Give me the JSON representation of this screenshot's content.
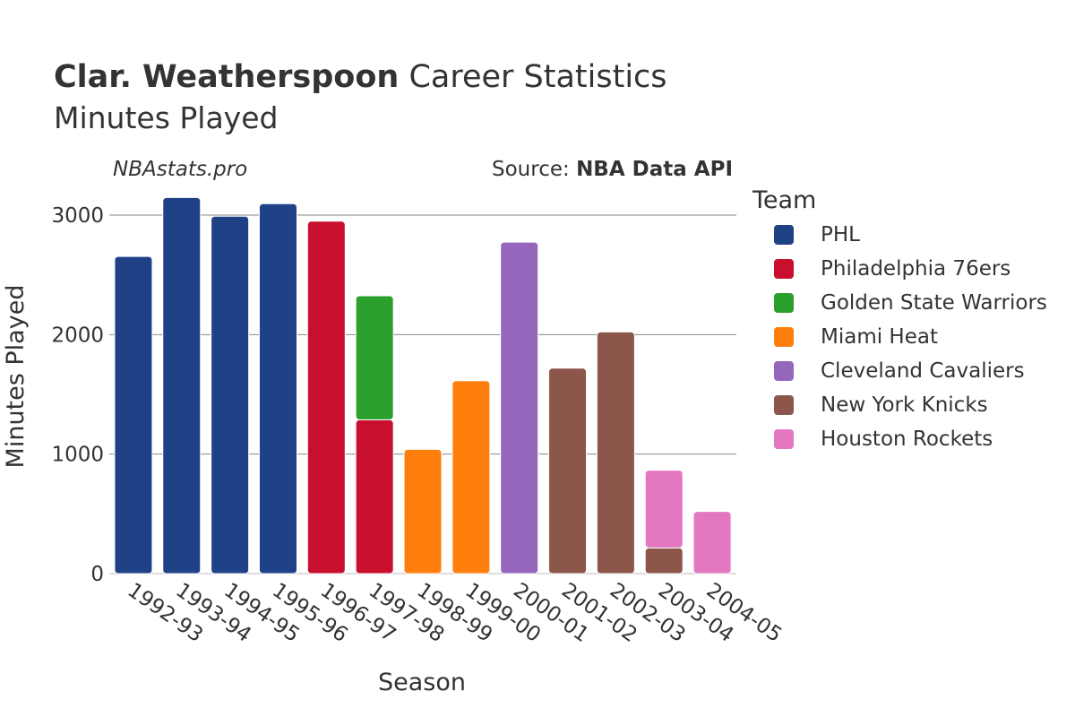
{
  "header": {
    "title_bold": "Clar. Weatherspoon",
    "title_rest": " Career Statistics",
    "subtitle": "Minutes Played",
    "watermark": "NBAstats.pro",
    "source_prefix": "Source: ",
    "source_name": "NBA Data API"
  },
  "legend": {
    "title": "Team",
    "items": [
      {
        "label": "PHL",
        "color": "#1f4287"
      },
      {
        "label": "Philadelphia 76ers",
        "color": "#c8102e"
      },
      {
        "label": "Golden State Warriors",
        "color": "#2ca02c"
      },
      {
        "label": "Miami Heat",
        "color": "#ff7f0e"
      },
      {
        "label": "Cleveland Cavaliers",
        "color": "#9467bd"
      },
      {
        "label": "New York Knicks",
        "color": "#8c564b"
      },
      {
        "label": "Houston Rockets",
        "color": "#e377c2"
      }
    ]
  },
  "chart_data": {
    "type": "bar",
    "stacked": true,
    "title": "Clar. Weatherspoon Career Statistics",
    "subtitle": "Minutes Played",
    "xlabel": "Season",
    "ylabel": "Minutes Played",
    "ylim": [
      0,
      3300
    ],
    "yticks": [
      0,
      1000,
      2000,
      3000
    ],
    "grid": true,
    "legend_position": "right",
    "categories": [
      "1992-93",
      "1993-94",
      "1994-95",
      "1995-96",
      "1996-97",
      "1997-98",
      "1998-99",
      "1999-00",
      "2000-01",
      "2001-02",
      "2002-03",
      "2003-04",
      "2004-05"
    ],
    "series": [
      {
        "name": "PHL",
        "color": "#1f4287",
        "values": [
          2654,
          3147,
          2991,
          3096,
          0,
          0,
          0,
          0,
          0,
          0,
          0,
          0,
          0
        ]
      },
      {
        "name": "Philadelphia 76ers",
        "color": "#c8102e",
        "values": [
          0,
          0,
          0,
          0,
          2949,
          1287,
          0,
          0,
          0,
          0,
          0,
          0,
          0
        ]
      },
      {
        "name": "Golden State Warriors",
        "color": "#2ca02c",
        "values": [
          0,
          0,
          0,
          0,
          0,
          1038,
          0,
          0,
          0,
          0,
          0,
          0,
          0
        ]
      },
      {
        "name": "Miami Heat",
        "color": "#ff7f0e",
        "values": [
          0,
          0,
          0,
          0,
          0,
          0,
          1040,
          1614,
          0,
          0,
          0,
          0,
          0
        ]
      },
      {
        "name": "Cleveland Cavaliers",
        "color": "#9467bd",
        "values": [
          0,
          0,
          0,
          0,
          0,
          0,
          0,
          0,
          2774,
          0,
          0,
          0,
          0
        ]
      },
      {
        "name": "New York Knicks",
        "color": "#8c564b",
        "values": [
          0,
          0,
          0,
          0,
          0,
          0,
          0,
          0,
          0,
          1719,
          2022,
          215,
          0
        ]
      },
      {
        "name": "Houston Rockets",
        "color": "#e377c2",
        "values": [
          0,
          0,
          0,
          0,
          0,
          0,
          0,
          0,
          0,
          0,
          0,
          650,
          520
        ]
      }
    ]
  }
}
